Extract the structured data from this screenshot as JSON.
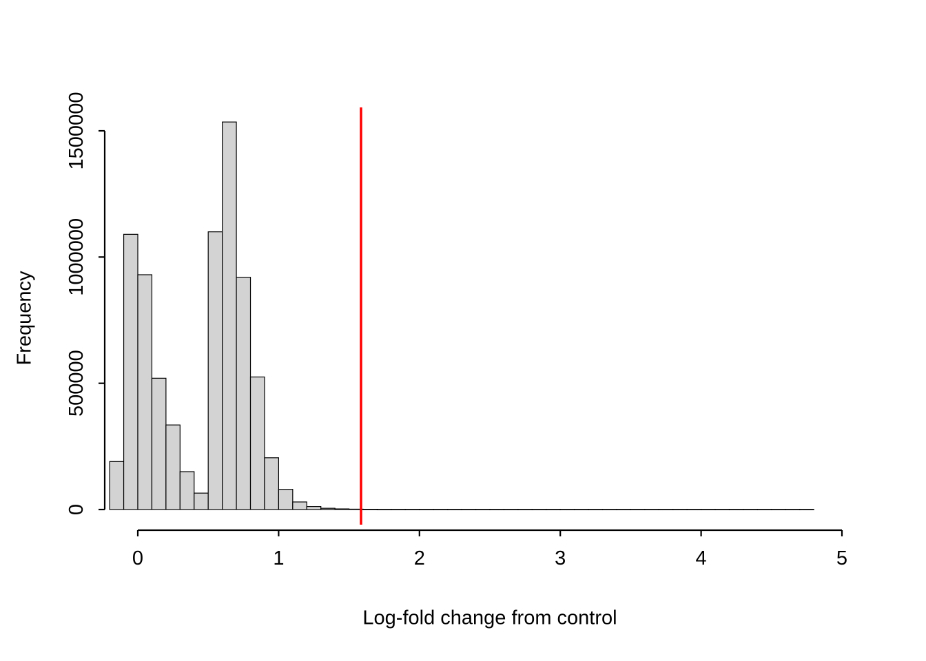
{
  "figure": {
    "background": "#ffffff",
    "xlabel": "Log-fold change from control",
    "ylabel": "Frequency"
  },
  "chart_data": {
    "type": "bar",
    "subtype": "histogram",
    "title": "",
    "xlabel": "Log-fold change from control",
    "ylabel": "Frequency",
    "bar_fill": "#d3d3d3",
    "bar_stroke": "#000000",
    "axis_color": "#000000",
    "bin_start": -0.2,
    "bin_width": 0.1,
    "counts": [
      190000,
      1090000,
      930000,
      520000,
      335000,
      150000,
      65000,
      1100000,
      1535000,
      920000,
      525000,
      205000,
      80000,
      30000,
      12000,
      5000,
      2500,
      1500,
      1000,
      500,
      500,
      500,
      500,
      500,
      500,
      500,
      500,
      500,
      500,
      500,
      500,
      500,
      500,
      500,
      500,
      500,
      500,
      500,
      500,
      500,
      500,
      500,
      500,
      500,
      500,
      500,
      500,
      500,
      500,
      500
    ],
    "x_ticks": [
      0,
      1,
      2,
      3,
      4,
      5
    ],
    "x_tick_labels": [
      "0",
      "1",
      "2",
      "3",
      "4",
      "5"
    ],
    "y_ticks": [
      0,
      500000,
      1000000,
      1500000
    ],
    "y_tick_labels": [
      "0",
      "500000",
      "1000000",
      "1500000"
    ],
    "xlim": [
      -0.25,
      5.05
    ],
    "ylim": [
      0,
      1540000
    ],
    "grid": false,
    "legend": null,
    "vline": {
      "x": 1.585,
      "color": "#ff0000"
    }
  }
}
